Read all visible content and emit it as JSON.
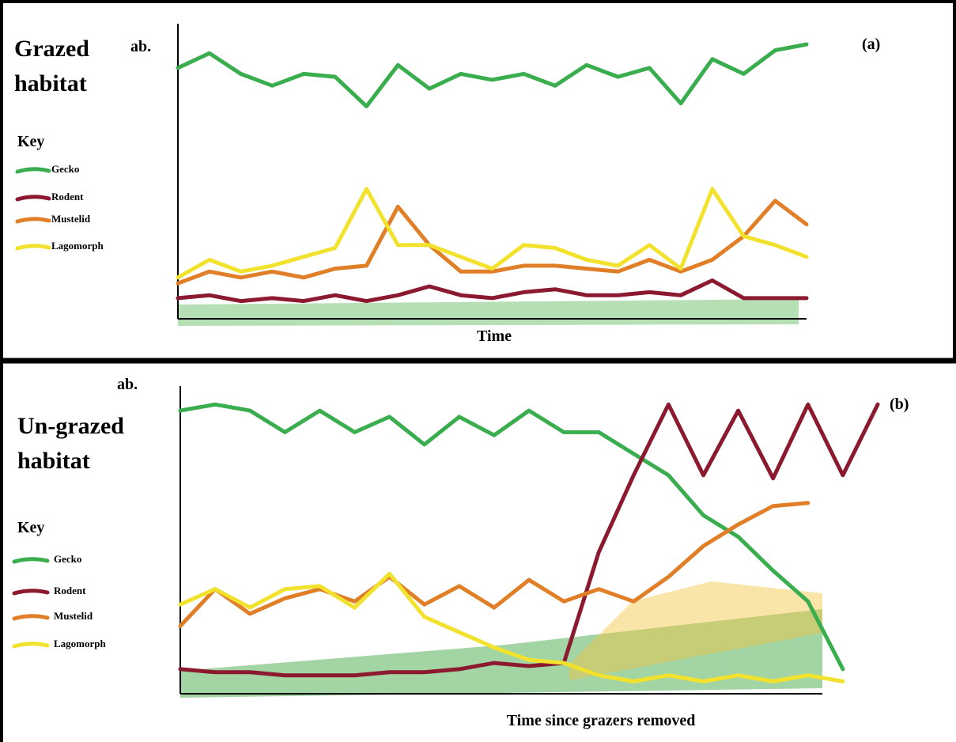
{
  "chart_data": [
    {
      "type": "line",
      "title": "Grazed habitat",
      "panel_label": "(a)",
      "y_label": "ab.",
      "x_label": "Time",
      "legend_title": "Key",
      "xlim": [
        0,
        100
      ],
      "ylim": [
        0,
        100
      ],
      "x": [
        0,
        5,
        10,
        15,
        20,
        25,
        30,
        35,
        40,
        45,
        50,
        55,
        60,
        65,
        70,
        75,
        80,
        85,
        90,
        95,
        100
      ],
      "series": [
        {
          "name": "Gecko",
          "color": "#3aae4f",
          "values": [
            85,
            90,
            83,
            79,
            83,
            82,
            72,
            86,
            78,
            83,
            81,
            83,
            79,
            86,
            82,
            85,
            73,
            88,
            83,
            91,
            93
          ]
        },
        {
          "name": "Rodent",
          "color": "#8b1a30",
          "values": [
            7,
            8,
            6,
            7,
            6,
            8,
            6,
            8,
            11,
            8,
            7,
            9,
            10,
            8,
            8,
            9,
            8,
            13,
            7,
            7,
            7
          ]
        },
        {
          "name": "Mustelid",
          "color": "#e07f27",
          "values": [
            12,
            16,
            14,
            16,
            14,
            17,
            18,
            38,
            25,
            16,
            16,
            18,
            18,
            17,
            16,
            20,
            16,
            20,
            28,
            40,
            32
          ]
        },
        {
          "name": "Lagomorph",
          "color": "#f2e22e",
          "values": [
            14,
            20,
            16,
            18,
            21,
            24,
            44,
            25,
            25,
            21,
            17,
            25,
            24,
            20,
            18,
            25,
            17,
            44,
            28,
            25,
            21
          ]
        }
      ]
    },
    {
      "type": "line",
      "title": "Un-grazed habitat",
      "panel_label": "(b)",
      "y_label": "ab.",
      "x_label": "Time since grazers removed",
      "legend_title": "Key",
      "xlim": [
        0,
        100
      ],
      "ylim": [
        0,
        100
      ],
      "x": [
        0,
        5,
        10,
        15,
        20,
        25,
        30,
        35,
        40,
        45,
        50,
        55,
        60,
        65,
        70,
        75,
        80,
        85,
        90,
        95,
        100
      ],
      "series": [
        {
          "name": "Gecko",
          "color": "#3aae4f",
          "values": [
            92,
            94,
            92,
            85,
            92,
            85,
            90,
            81,
            90,
            84,
            92,
            85,
            85,
            78,
            71,
            58,
            51,
            40,
            30,
            8,
            null
          ]
        },
        {
          "name": "Rodent",
          "color": "#8b1a30",
          "values": [
            8,
            7,
            7,
            6,
            6,
            6,
            7,
            7,
            8,
            10,
            9,
            10,
            46,
            71,
            94,
            71,
            92,
            70,
            94,
            71,
            94
          ]
        },
        {
          "name": "Mustelid",
          "color": "#e07f27",
          "values": [
            22,
            34,
            26,
            31,
            34,
            30,
            38,
            29,
            35,
            28,
            37,
            30,
            34,
            30,
            38,
            48,
            55,
            61,
            62,
            null,
            null
          ]
        },
        {
          "name": "Lagomorph",
          "color": "#f2e22e",
          "values": [
            29,
            34,
            28,
            34,
            35,
            28,
            39,
            25,
            20,
            15,
            11,
            10,
            6,
            4,
            6,
            4,
            6,
            4,
            6,
            4,
            null
          ]
        }
      ]
    }
  ]
}
